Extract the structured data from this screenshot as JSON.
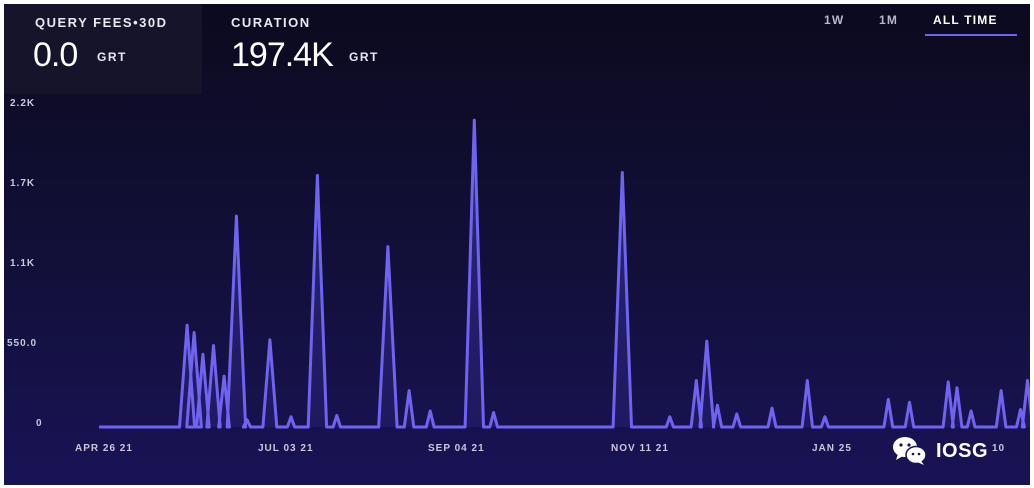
{
  "stats": {
    "query_fees": {
      "label": "QUERY FEES•30D",
      "value": "0.0",
      "unit": "GRT"
    },
    "curation": {
      "label": "CURATION",
      "value": "197.4K",
      "unit": "GRT"
    }
  },
  "time_ranges": [
    {
      "label": "1W",
      "active": false
    },
    {
      "label": "1M",
      "active": false
    },
    {
      "label": "ALL TIME",
      "active": true
    }
  ],
  "watermark": {
    "text": "IOSG",
    "icon": "wechat-icon"
  },
  "colors": {
    "line": "#6f63f0",
    "fill": "#4b3fc4",
    "background": "#0c0a1e",
    "accent": "#6f63f0"
  },
  "chart_data": {
    "type": "area",
    "x_tick_labels": [
      "APR 26 21",
      "JUL 03 21",
      "SEP 04 21",
      "NOV 11 21",
      "JAN 25",
      "10"
    ],
    "y_tick_labels": [
      "2.2K",
      "1.7K",
      "1.1K",
      "550.0",
      "0"
    ],
    "y_tick_values": [
      2200,
      1650,
      1100,
      550,
      0
    ],
    "ylim": [
      0,
      2200
    ],
    "grid": false,
    "series": [
      {
        "values": [
          [
            -0.04,
            0
          ],
          [
            0.33,
            0
          ],
          [
            0.46,
            700
          ],
          [
            0.5,
            650
          ],
          [
            0.55,
            500
          ],
          [
            0.61,
            560
          ],
          [
            0.67,
            350
          ],
          [
            0.74,
            1450
          ],
          [
            0.8,
            50
          ],
          [
            0.93,
            600
          ],
          [
            1.05,
            70
          ],
          [
            1.2,
            1730
          ],
          [
            1.31,
            80
          ],
          [
            1.6,
            1240
          ],
          [
            1.72,
            250
          ],
          [
            1.84,
            110
          ],
          [
            2.09,
            2110
          ],
          [
            2.2,
            100
          ],
          [
            2.93,
            1750
          ],
          [
            3.2,
            70
          ],
          [
            3.35,
            320
          ],
          [
            3.41,
            590
          ],
          [
            3.47,
            150
          ],
          [
            3.58,
            90
          ],
          [
            3.78,
            130
          ],
          [
            3.98,
            320
          ],
          [
            4.08,
            70
          ],
          [
            4.44,
            190
          ],
          [
            4.56,
            170
          ],
          [
            4.78,
            310
          ],
          [
            4.83,
            270
          ],
          [
            4.91,
            110
          ],
          [
            5.08,
            250
          ],
          [
            5.19,
            120
          ],
          [
            5.23,
            320
          ],
          [
            5.29,
            200
          ],
          [
            5.83,
            290
          ],
          [
            6.3,
            50
          ],
          [
            6.47,
            60
          ],
          [
            6.94,
            30
          ],
          [
            7.11,
            40
          ],
          [
            7.36,
            40
          ],
          [
            7.58,
            30
          ],
          [
            7.86,
            0
          ]
        ]
      }
    ]
  }
}
